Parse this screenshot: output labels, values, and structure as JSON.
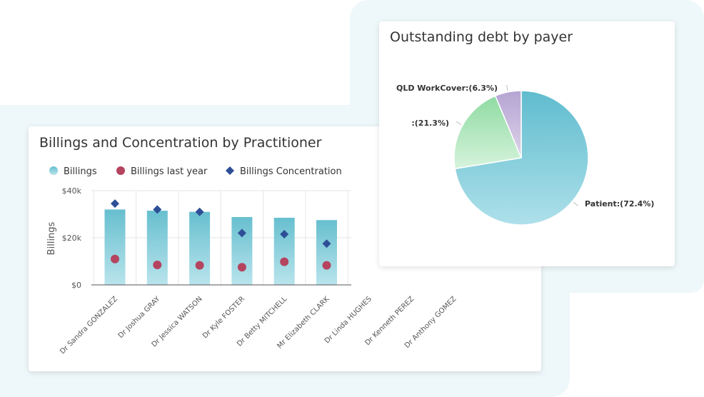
{
  "left_chart": {
    "title": "Billings and Concentration by Practitioner",
    "ylabel": "Billings",
    "legend": [
      "Billings",
      "Billings last year",
      "Billings Concentration"
    ],
    "chart_data": {
      "type": "bar",
      "title": "Billings and Concentration by Practitioner",
      "ylabel": "Billings",
      "ylim": [
        0,
        40000
      ],
      "yticks": [
        0,
        20000,
        40000
      ],
      "ytick_labels": [
        "$0",
        "$20k",
        "$40k"
      ],
      "grid": true,
      "legend_position": "top",
      "categories": [
        "Dr Sandra GONZALEZ",
        "Dr Joshua GRAY",
        "Dr Jessica WATSON",
        "Dr Kyle FOSTER",
        "Dr Betty MITCHELL",
        "Mr Elizabeth CLARK",
        "Dr Linda HUGHES",
        "Dr Kenneth PEREZ",
        "Dr Anthony GOMEZ"
      ],
      "series": [
        {
          "name": "Billings",
          "type": "bar",
          "color": "#7cc8d6",
          "values": [
            32000,
            31500,
            31000,
            28800,
            28500,
            27500,
            null,
            null,
            null
          ]
        },
        {
          "name": "Billings last year",
          "type": "scatter",
          "color": "#b5445f",
          "values": [
            11000,
            8500,
            8300,
            7500,
            9800,
            8300,
            null,
            null,
            null
          ]
        },
        {
          "name": "Billings Concentration",
          "type": "scatter",
          "color": "#2e4f96",
          "values": [
            34500,
            32000,
            31000,
            22000,
            21500,
            17500,
            null,
            null,
            null
          ]
        }
      ]
    }
  },
  "right_chart": {
    "title": "Outstanding debt by payer",
    "chart_data": {
      "type": "pie",
      "title": "Outstanding debt by payer",
      "slices": [
        {
          "label": "Patient:(72.4%)",
          "value": 72.4,
          "color": "#6cc0d1"
        },
        {
          "label": ":(21.3%)",
          "value": 21.3,
          "color": "#9ee3ad"
        },
        {
          "label": "QLD WorkCover:(6.3%)",
          "value": 6.3,
          "color": "#c2b3d9"
        }
      ]
    }
  }
}
